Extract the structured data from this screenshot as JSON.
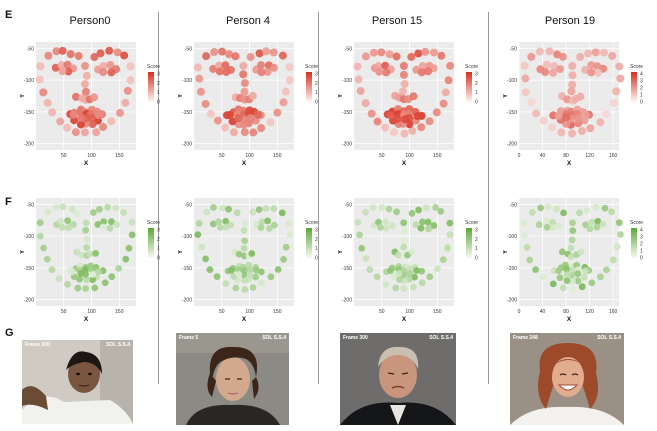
{
  "panel_labels": {
    "e": "E",
    "f": "F",
    "g": "G"
  },
  "persons": [
    {
      "title": "Person0",
      "frame_label": "Frame 300",
      "stamp": "SOL S.S.4",
      "e_xticks": [
        "50",
        "100",
        "150"
      ],
      "f_xticks": [
        "50",
        "100",
        "150"
      ]
    },
    {
      "title": "Person 4",
      "frame_label": "Frame 5",
      "stamp": "SOL S.S.4",
      "e_xticks": [
        "50",
        "100",
        "150"
      ],
      "f_xticks": [
        "50",
        "100",
        "150"
      ]
    },
    {
      "title": "Person 15",
      "frame_label": "Frame 300",
      "stamp": "SOL S.S.4",
      "e_xticks": [
        "50",
        "100",
        "150"
      ],
      "f_xticks": [
        "50",
        "100",
        "150"
      ]
    },
    {
      "title": "Person 19",
      "frame_label": "Frame 248",
      "stamp": "SOL S.S.4",
      "e_xticks": [
        "0",
        "40",
        "80",
        "120",
        "160"
      ],
      "f_xticks": [
        "0",
        "40",
        "80",
        "120",
        "160"
      ]
    }
  ],
  "chart_data": [
    {
      "row": "E",
      "type": "scatter",
      "person": "Person0",
      "xlabel": "X",
      "ylabel": "Y",
      "yticks": [
        "-50",
        "-100",
        "-150",
        "-200"
      ],
      "xlim": [
        0,
        180
      ],
      "ylim": [
        -210,
        -40
      ],
      "legend": {
        "title": "Score",
        "ticks": [
          "3",
          "2",
          "1",
          "0"
        ],
        "max": 3,
        "position": "right"
      },
      "color": "#d7301f",
      "note": "68 facial landmark points colored by importance score; eyes/mouth highest"
    },
    {
      "row": "E",
      "type": "scatter",
      "person": "Person 4",
      "xlabel": "X",
      "ylabel": "Y",
      "yticks": [
        "-50",
        "-100",
        "-150",
        "-200"
      ],
      "xlim": [
        0,
        180
      ],
      "ylim": [
        -210,
        -40
      ],
      "legend": {
        "title": "Score",
        "ticks": [
          "3",
          "2",
          "1",
          "0"
        ],
        "max": 3,
        "position": "right"
      },
      "color": "#d7301f"
    },
    {
      "row": "E",
      "type": "scatter",
      "person": "Person 15",
      "xlabel": "X",
      "ylabel": "Y",
      "yticks": [
        "-50",
        "-100",
        "-150",
        "-200"
      ],
      "xlim": [
        0,
        180
      ],
      "ylim": [
        -210,
        -40
      ],
      "legend": {
        "title": "Score",
        "ticks": [
          "3",
          "2",
          "1",
          "0"
        ],
        "max": 3,
        "position": "right"
      },
      "color": "#d7301f"
    },
    {
      "row": "E",
      "type": "scatter",
      "person": "Person 19",
      "xlabel": "X",
      "ylabel": "Y",
      "yticks": [
        "-50",
        "-100",
        "-150",
        "-200"
      ],
      "xlim": [
        0,
        170
      ],
      "ylim": [
        -210,
        -40
      ],
      "legend": {
        "title": "Score",
        "ticks": [
          "4",
          "3",
          "2",
          "1",
          "0"
        ],
        "max": 4,
        "position": "right"
      },
      "color": "#d7301f"
    },
    {
      "row": "F",
      "type": "scatter",
      "person": "Person0",
      "xlabel": "X",
      "ylabel": "Y",
      "yticks": [
        "-50",
        "-100",
        "-150",
        "-200"
      ],
      "xlim": [
        0,
        180
      ],
      "ylim": [
        -210,
        -40
      ],
      "legend": {
        "title": "Score",
        "ticks": [
          "3",
          "2",
          "1",
          "0"
        ],
        "max": 3,
        "position": "right"
      },
      "color": "#5aa832"
    },
    {
      "row": "F",
      "type": "scatter",
      "person": "Person 4",
      "xlabel": "X",
      "ylabel": "Y",
      "yticks": [
        "-50",
        "-100",
        "-150",
        "-200"
      ],
      "xlim": [
        0,
        180
      ],
      "ylim": [
        -210,
        -40
      ],
      "legend": {
        "title": "Score",
        "ticks": [
          "3",
          "2",
          "1",
          "0"
        ],
        "max": 3,
        "position": "right"
      },
      "color": "#5aa832"
    },
    {
      "row": "F",
      "type": "scatter",
      "person": "Person 15",
      "xlabel": "X",
      "ylabel": "Y",
      "yticks": [
        "-50",
        "-100",
        "-150",
        "-200"
      ],
      "xlim": [
        0,
        180
      ],
      "ylim": [
        -210,
        -40
      ],
      "legend": {
        "title": "Score",
        "ticks": [
          "3",
          "2",
          "1",
          "0"
        ],
        "max": 3,
        "position": "right"
      },
      "color": "#5aa832"
    },
    {
      "row": "F",
      "type": "scatter",
      "person": "Person 19",
      "xlabel": "X",
      "ylabel": "Y",
      "yticks": [
        "-50",
        "-100",
        "-150",
        "-200"
      ],
      "xlim": [
        0,
        170
      ],
      "ylim": [
        -210,
        -40
      ],
      "legend": {
        "title": "Score",
        "ticks": [
          "4",
          "3",
          "2",
          "1",
          "0"
        ],
        "max": 4,
        "position": "right"
      },
      "color": "#5aa832"
    }
  ]
}
